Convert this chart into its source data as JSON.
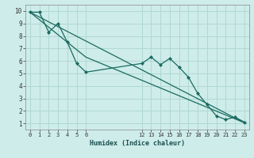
{
  "xlabel": "Humidex (Indice chaleur)",
  "bg_color": "#ceecea",
  "grid_color": "#b0d8d4",
  "line_color": "#1a6b60",
  "xlim": [
    -0.5,
    23.5
  ],
  "ylim": [
    0.5,
    10.5
  ],
  "xticks": [
    0,
    1,
    2,
    3,
    4,
    5,
    6,
    12,
    13,
    14,
    15,
    16,
    17,
    18,
    19,
    20,
    21,
    22,
    23
  ],
  "yticks": [
    1,
    2,
    3,
    4,
    5,
    6,
    7,
    8,
    9,
    10
  ],
  "line1_x": [
    0,
    1,
    2,
    3,
    4,
    5,
    6,
    12,
    13,
    14,
    15,
    16,
    17,
    18,
    19,
    20,
    21,
    22,
    23
  ],
  "line1_y": [
    9.9,
    9.9,
    8.3,
    9.0,
    7.5,
    5.8,
    5.1,
    5.8,
    6.3,
    5.7,
    6.2,
    5.5,
    4.7,
    3.4,
    2.5,
    1.6,
    1.3,
    1.5,
    1.1
  ],
  "line2_x": [
    0,
    23
  ],
  "line2_y": [
    9.9,
    1.05
  ],
  "line3_x": [
    0,
    6,
    23
  ],
  "line3_y": [
    9.9,
    6.3,
    1.05
  ]
}
